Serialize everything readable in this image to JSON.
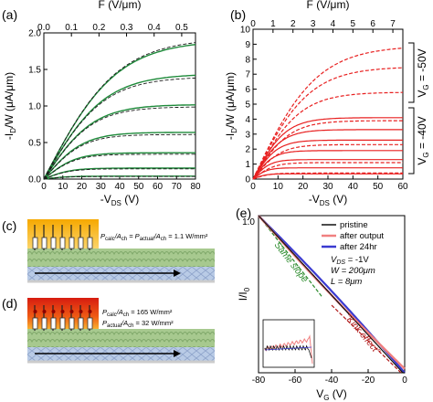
{
  "panels": {
    "a": "(a)",
    "b": "(b)",
    "c": "(c)",
    "d": "(d)",
    "e": "(e)"
  },
  "chart_data": [
    {
      "id": "a",
      "type": "line",
      "xlabel": "-V",
      "xlabel_sub": "DS",
      "xlabel_unit": " (V)",
      "ylabel": "-I",
      "ylabel_sub": "D",
      "ylabel_unit": "/W (μA/μm)",
      "top_label": "F (V/μm)",
      "xlim": [
        0,
        80
      ],
      "ylim": [
        0,
        2.0
      ],
      "top_lim": [
        0,
        0.55
      ],
      "xticks": [
        0,
        10,
        20,
        30,
        40,
        50,
        60,
        70,
        80
      ],
      "yticks": [
        0.0,
        0.5,
        1.0,
        1.5,
        2.0
      ],
      "top_ticks": [
        0.0,
        0.1,
        0.2,
        0.3,
        0.4,
        0.5
      ],
      "series": [
        {
          "style": "solid",
          "values": [
            1.9,
            1.44,
            1.02,
            0.64,
            0.36,
            0.15,
            0.04
          ]
        },
        {
          "style": "dashed",
          "values": [
            1.93,
            1.4,
            0.99,
            0.61,
            0.34,
            0.14,
            0.035
          ]
        }
      ]
    },
    {
      "id": "b",
      "type": "line",
      "xlabel": "-V",
      "xlabel_sub": "DS",
      "xlabel_unit": " (V)",
      "ylabel": "-I",
      "ylabel_sub": "D",
      "ylabel_unit": "/W (μA/μm)",
      "top_label": "F (V/μm)",
      "xlim": [
        0,
        60
      ],
      "ylim": [
        0,
        10
      ],
      "top_lim": [
        0,
        7.5
      ],
      "xticks": [
        0,
        10,
        20,
        30,
        40,
        50,
        60
      ],
      "yticks": [
        0,
        1,
        2,
        3,
        4,
        5,
        6,
        7,
        8,
        9,
        10
      ],
      "top_ticks": [
        0,
        1,
        2,
        3,
        4,
        5,
        6,
        7
      ],
      "bracket_labels": [
        "V",
        "G",
        " = -50V",
        " = -40V"
      ],
      "series": [
        {
          "style": "solid",
          "values": [
            4.1,
            3.3,
            2.6,
            1.9,
            1.3,
            0.75,
            0.35
          ]
        },
        {
          "style": "dashed",
          "values": [
            8.9,
            7.5,
            5.8,
            3.9,
            2.3,
            1.1,
            0.4
          ]
        }
      ]
    },
    {
      "id": "e",
      "type": "line",
      "xlabel": "V",
      "xlabel_sub": "G",
      "xlabel_unit": " (V)",
      "ylabel": "I/I",
      "ylabel_sub": "0",
      "xlim": [
        -80,
        0
      ],
      "xticks": [
        -80,
        -60,
        -40,
        -20,
        0
      ],
      "yticks_top": "1.0",
      "legend": [
        "pristine",
        "after output",
        "after 24hr"
      ],
      "conditions": [
        "V",
        "DS",
        " = -1V",
        "W = 200μm",
        "L = 8μm"
      ],
      "annotations": [
        "Same slope",
        "\"Kink effect\""
      ]
    }
  ],
  "schematic_c": {
    "line1_a": "P",
    "line1_b": "calc",
    "line1_c": "/A",
    "line1_d": "ch",
    "line1_e": " = P",
    "line1_f": "actual",
    "line1_g": "/A",
    "line1_h": "ch",
    "line1_i": " = 1.1 W/mm²"
  },
  "schematic_d": {
    "line1_a": "P",
    "line1_b": "calc",
    "line1_c": "/A",
    "line1_d": "ch",
    "line1_e": " = 165 W/mm²",
    "line2_a": "P",
    "line2_b": "actual",
    "line2_c": "/A",
    "line2_d": "ch",
    "line2_e": " = 32 W/mm²"
  },
  "colors": {
    "a_line": "#1e8a3a",
    "b_line": "#e82020",
    "pristine": "#111111",
    "after_output": "#f08080",
    "after_24hr": "#3a3ad0",
    "same_slope": "#2a8a2a",
    "kink": "#b01818"
  }
}
